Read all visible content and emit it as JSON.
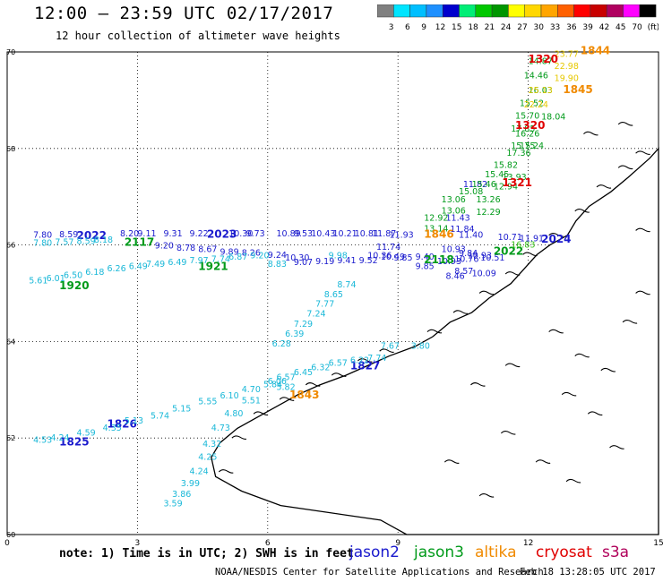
{
  "header": {
    "title": "12:00 — 23:59 UTC 02/17/2017",
    "subtitle": "12 hour collection of altimeter wave heights"
  },
  "colorbar": {
    "ticks": [
      "3",
      "6",
      "9",
      "12",
      "15",
      "18",
      "21",
      "24",
      "27",
      "30",
      "33",
      "36",
      "39",
      "42",
      "45",
      "70",
      "(ft)"
    ],
    "colors": [
      "#808080",
      "#00e5ff",
      "#00bfff",
      "#1e90ff",
      "#0000cd",
      "#00ee76",
      "#00c800",
      "#009600",
      "#ffff00",
      "#ffd700",
      "#ffa500",
      "#ff6000",
      "#ff0000",
      "#c80000",
      "#b00060",
      "#ff00ff",
      "#000000"
    ]
  },
  "footer": {
    "note": "note: 1) Time is in UTC; 2) SWH is in feet",
    "credit": "NOAA/NESDIS Center for Satellite Applications and Research",
    "timestamp": "Feb 18 13:28:05 UTC 2017"
  },
  "satellites": [
    {
      "name": "jason2",
      "color": "#1a1acd"
    },
    {
      "name": "jason3",
      "color": "#009a1a"
    },
    {
      "name": "altika",
      "color": "#f08a00"
    },
    {
      "name": "cryosat",
      "color": "#e00000"
    },
    {
      "name": "s3a",
      "color": "#b0005a"
    }
  ],
  "chart_data": {
    "type": "scatter",
    "xlim": [
      0,
      15
    ],
    "ylim": [
      60,
      70
    ],
    "xticks": [
      "0",
      "3",
      "6",
      "9",
      "12",
      "15"
    ],
    "yticks": [
      "60",
      "62",
      "64",
      "66",
      "68",
      "70"
    ],
    "grid": true,
    "series": [
      {
        "name": "jason2",
        "color": "#1a1acd",
        "labels": [
          {
            "lon": 1.6,
            "lat": 66.12,
            "text": "2022",
            "kind": "time"
          },
          {
            "lon": 4.6,
            "lat": 66.15,
            "text": "2023",
            "kind": "time"
          },
          {
            "lon": 12.3,
            "lat": 66.05,
            "text": "2024",
            "kind": "time"
          },
          {
            "lon": 1.2,
            "lat": 61.85,
            "text": "1825",
            "kind": "time"
          },
          {
            "lon": 2.3,
            "lat": 62.22,
            "text": "1826",
            "kind": "time"
          },
          {
            "lon": 7.9,
            "lat": 63.42,
            "text": "1827",
            "kind": "time"
          },
          {
            "lon": 0.6,
            "lat": 66.15,
            "text": "7.80"
          },
          {
            "lon": 1.2,
            "lat": 66.16,
            "text": "8.59"
          },
          {
            "lon": 2.6,
            "lat": 66.18,
            "text": "8.20"
          },
          {
            "lon": 3.0,
            "lat": 66.18,
            "text": "9.11"
          },
          {
            "lon": 3.6,
            "lat": 66.18,
            "text": "9.31"
          },
          {
            "lon": 4.2,
            "lat": 66.18,
            "text": "9.22"
          },
          {
            "lon": 5.1,
            "lat": 66.18,
            "text": "10.30"
          },
          {
            "lon": 5.5,
            "lat": 66.18,
            "text": "9.73"
          },
          {
            "lon": 6.2,
            "lat": 66.18,
            "text": "10.89"
          },
          {
            "lon": 6.6,
            "lat": 66.18,
            "text": "9.53"
          },
          {
            "lon": 7.0,
            "lat": 66.18,
            "text": "10.43"
          },
          {
            "lon": 7.5,
            "lat": 66.18,
            "text": "10.21"
          },
          {
            "lon": 8.0,
            "lat": 66.18,
            "text": "10.81"
          },
          {
            "lon": 8.4,
            "lat": 66.18,
            "text": "11.87"
          },
          {
            "lon": 8.8,
            "lat": 66.15,
            "text": "11.93"
          },
          {
            "lon": 11.3,
            "lat": 66.1,
            "text": "10.71"
          },
          {
            "lon": 11.8,
            "lat": 66.08,
            "text": "11.91"
          },
          {
            "lon": 3.4,
            "lat": 65.93,
            "text": "9.20"
          },
          {
            "lon": 3.9,
            "lat": 65.88,
            "text": "8.78"
          },
          {
            "lon": 4.4,
            "lat": 65.85,
            "text": "8.67"
          },
          {
            "lon": 4.9,
            "lat": 65.8,
            "text": "9.89"
          },
          {
            "lon": 5.4,
            "lat": 65.78,
            "text": "8.26"
          },
          {
            "lon": 6.0,
            "lat": 65.73,
            "text": "9.24"
          },
          {
            "lon": 6.4,
            "lat": 65.68,
            "text": "10.30"
          },
          {
            "lon": 6.6,
            "lat": 65.58,
            "text": "9.07"
          },
          {
            "lon": 7.1,
            "lat": 65.6,
            "text": "9.19"
          },
          {
            "lon": 7.6,
            "lat": 65.62,
            "text": "9.41"
          },
          {
            "lon": 8.1,
            "lat": 65.62,
            "text": "9.52"
          },
          {
            "lon": 8.3,
            "lat": 65.72,
            "text": "10.36"
          },
          {
            "lon": 8.6,
            "lat": 65.7,
            "text": "10.49"
          },
          {
            "lon": 8.9,
            "lat": 65.68,
            "text": "9.85"
          },
          {
            "lon": 9.4,
            "lat": 65.7,
            "text": "9.40"
          },
          {
            "lon": 8.5,
            "lat": 65.9,
            "text": "11.74"
          },
          {
            "lon": 9.4,
            "lat": 65.5,
            "text": "9.85"
          },
          {
            "lon": 9.9,
            "lat": 65.6,
            "text": "10.93"
          },
          {
            "lon": 10.3,
            "lat": 65.65,
            "text": "10.76"
          },
          {
            "lon": 10.6,
            "lat": 65.72,
            "text": "10.93"
          },
          {
            "lon": 10.9,
            "lat": 65.68,
            "text": "10.51"
          },
          {
            "lon": 10.4,
            "lat": 65.77,
            "text": "9.84"
          },
          {
            "lon": 10.3,
            "lat": 65.4,
            "text": "8.57"
          },
          {
            "lon": 10.1,
            "lat": 65.3,
            "text": "8.46"
          },
          {
            "lon": 10.7,
            "lat": 65.35,
            "text": "10.09"
          },
          {
            "lon": 10.0,
            "lat": 65.85,
            "text": "10.93"
          },
          {
            "lon": 10.2,
            "lat": 66.27,
            "text": "11.84"
          },
          {
            "lon": 10.1,
            "lat": 66.5,
            "text": "11.43"
          },
          {
            "lon": 10.5,
            "lat": 67.2,
            "text": "11.82"
          },
          {
            "lon": 10.4,
            "lat": 66.15,
            "text": "11.40"
          }
        ]
      },
      {
        "name": "jason3",
        "color": "#009a1a",
        "labels": [
          {
            "lon": 2.7,
            "lat": 65.98,
            "text": "2117",
            "kind": "time"
          },
          {
            "lon": 4.4,
            "lat": 65.48,
            "text": "1921",
            "kind": "time"
          },
          {
            "lon": 1.2,
            "lat": 65.08,
            "text": "1920",
            "kind": "time"
          },
          {
            "lon": 9.6,
            "lat": 65.62,
            "text": "2118",
            "kind": "time"
          },
          {
            "lon": 11.2,
            "lat": 65.8,
            "text": "2022",
            "kind": "time"
          },
          {
            "lon": 11.6,
            "lat": 65.95,
            "text": "16.83",
            "kind": "swh"
          },
          {
            "lon": 12.0,
            "lat": 69.75,
            "text": "14.87"
          },
          {
            "lon": 11.9,
            "lat": 69.45,
            "text": "14.46"
          },
          {
            "lon": 12.0,
            "lat": 69.15,
            "text": "16.03"
          },
          {
            "lon": 11.8,
            "lat": 68.88,
            "text": "15.52"
          },
          {
            "lon": 11.7,
            "lat": 68.62,
            "text": "15.70"
          },
          {
            "lon": 11.6,
            "lat": 68.35,
            "text": "17.85"
          },
          {
            "lon": 11.7,
            "lat": 68.25,
            "text": "16.26"
          },
          {
            "lon": 11.6,
            "lat": 68.0,
            "text": "15.75"
          },
          {
            "lon": 11.5,
            "lat": 67.85,
            "text": "17.36"
          },
          {
            "lon": 11.2,
            "lat": 67.6,
            "text": "15.82"
          },
          {
            "lon": 11.0,
            "lat": 67.4,
            "text": "15.45"
          },
          {
            "lon": 10.7,
            "lat": 67.2,
            "text": "15.46"
          },
          {
            "lon": 10.4,
            "lat": 67.05,
            "text": "15.08"
          },
          {
            "lon": 10.0,
            "lat": 66.88,
            "text": "13.06"
          },
          {
            "lon": 10.0,
            "lat": 66.65,
            "text": "13.06"
          },
          {
            "lon": 9.6,
            "lat": 66.5,
            "text": "12.92"
          },
          {
            "lon": 9.6,
            "lat": 66.28,
            "text": "13.14"
          },
          {
            "lon": 10.8,
            "lat": 66.88,
            "text": "13.26"
          },
          {
            "lon": 10.8,
            "lat": 66.62,
            "text": "12.29"
          },
          {
            "lon": 11.2,
            "lat": 67.15,
            "text": "12.94"
          },
          {
            "lon": 11.4,
            "lat": 67.35,
            "text": "13.93"
          },
          {
            "lon": 11.8,
            "lat": 68.0,
            "text": "15.24"
          },
          {
            "lon": 12.3,
            "lat": 68.6,
            "text": "18.04"
          }
        ]
      },
      {
        "name": "cyan",
        "color": "#1ab8d8",
        "labels": [
          {
            "lon": 0.6,
            "lat": 61.9,
            "text": "4.53"
          },
          {
            "lon": 1.0,
            "lat": 61.95,
            "text": "4.24"
          },
          {
            "lon": 1.6,
            "lat": 62.05,
            "text": "4.59"
          },
          {
            "lon": 2.2,
            "lat": 62.15,
            "text": "4.35"
          },
          {
            "lon": 2.7,
            "lat": 62.3,
            "text": "5.13"
          },
          {
            "lon": 3.3,
            "lat": 62.4,
            "text": "5.74"
          },
          {
            "lon": 3.8,
            "lat": 62.55,
            "text": "5.15"
          },
          {
            "lon": 4.4,
            "lat": 62.7,
            "text": "5.55"
          },
          {
            "lon": 4.9,
            "lat": 62.82,
            "text": "6.10"
          },
          {
            "lon": 5.4,
            "lat": 62.95,
            "text": "4.70"
          },
          {
            "lon": 5.9,
            "lat": 63.05,
            "text": "5.84"
          },
          {
            "lon": 6.2,
            "lat": 63.2,
            "text": "6.57"
          },
          {
            "lon": 6.6,
            "lat": 63.3,
            "text": "6.45"
          },
          {
            "lon": 7.0,
            "lat": 63.4,
            "text": "6.32"
          },
          {
            "lon": 7.4,
            "lat": 63.5,
            "text": "6.57"
          },
          {
            "lon": 7.9,
            "lat": 63.55,
            "text": "6.22"
          },
          {
            "lon": 8.3,
            "lat": 63.6,
            "text": "7.74"
          },
          {
            "lon": 8.6,
            "lat": 63.85,
            "text": "7.67"
          },
          {
            "lon": 6.1,
            "lat": 63.9,
            "text": "6.28"
          },
          {
            "lon": 6.4,
            "lat": 64.1,
            "text": "6.39"
          },
          {
            "lon": 6.6,
            "lat": 64.3,
            "text": "7.29"
          },
          {
            "lon": 6.9,
            "lat": 64.52,
            "text": "7.24"
          },
          {
            "lon": 7.1,
            "lat": 64.72,
            "text": "7.77"
          },
          {
            "lon": 7.3,
            "lat": 64.92,
            "text": "8.65"
          },
          {
            "lon": 7.6,
            "lat": 65.12,
            "text": "8.74"
          },
          {
            "lon": 6.2,
            "lat": 63.0,
            "text": "5.82"
          },
          {
            "lon": 6.0,
            "lat": 63.12,
            "text": "6.06"
          },
          {
            "lon": 5.4,
            "lat": 62.72,
            "text": "5.51"
          },
          {
            "lon": 5.0,
            "lat": 62.45,
            "text": "4.80"
          },
          {
            "lon": 4.7,
            "lat": 62.15,
            "text": "4.73"
          },
          {
            "lon": 4.5,
            "lat": 61.82,
            "text": "4.32"
          },
          {
            "lon": 4.4,
            "lat": 61.55,
            "text": "4.25"
          },
          {
            "lon": 4.2,
            "lat": 61.25,
            "text": "4.24"
          },
          {
            "lon": 4.0,
            "lat": 61.0,
            "text": "3.99"
          },
          {
            "lon": 3.8,
            "lat": 60.78,
            "text": "3.86"
          },
          {
            "lon": 3.6,
            "lat": 60.58,
            "text": "3.59"
          },
          {
            "lon": 0.5,
            "lat": 65.2,
            "text": "5.61"
          },
          {
            "lon": 0.9,
            "lat": 65.25,
            "text": "6.01"
          },
          {
            "lon": 1.3,
            "lat": 65.32,
            "text": "6.50"
          },
          {
            "lon": 1.8,
            "lat": 65.38,
            "text": "6.18"
          },
          {
            "lon": 2.3,
            "lat": 65.45,
            "text": "6.26"
          },
          {
            "lon": 2.8,
            "lat": 65.5,
            "text": "6.49"
          },
          {
            "lon": 3.2,
            "lat": 65.55,
            "text": "7.49"
          },
          {
            "lon": 3.7,
            "lat": 65.58,
            "text": "6.49"
          },
          {
            "lon": 4.2,
            "lat": 65.62,
            "text": "7.97"
          },
          {
            "lon": 4.7,
            "lat": 65.65,
            "text": "7.74"
          },
          {
            "lon": 5.1,
            "lat": 65.7,
            "text": "6.87"
          },
          {
            "lon": 5.6,
            "lat": 65.72,
            "text": "9.20"
          },
          {
            "lon": 6.0,
            "lat": 65.55,
            "text": "8.83"
          },
          {
            "lon": 7.4,
            "lat": 65.72,
            "text": "9.98"
          },
          {
            "lon": 0.6,
            "lat": 65.98,
            "text": "7.80"
          },
          {
            "lon": 1.1,
            "lat": 66.0,
            "text": "7.57"
          },
          {
            "lon": 1.6,
            "lat": 66.02,
            "text": "8.59"
          },
          {
            "lon": 2.0,
            "lat": 66.05,
            "text": "8.18"
          },
          {
            "lon": 9.3,
            "lat": 63.85,
            "text": "3.80"
          }
        ]
      },
      {
        "name": "altika",
        "color": "#f08a00",
        "labels": [
          {
            "lon": 6.5,
            "lat": 62.82,
            "text": "1843",
            "kind": "time"
          },
          {
            "lon": 13.2,
            "lat": 69.95,
            "text": "1844",
            "kind": "time"
          },
          {
            "lon": 12.8,
            "lat": 69.15,
            "text": "1845",
            "kind": "time"
          },
          {
            "lon": 9.6,
            "lat": 66.15,
            "text": "1846",
            "kind": "time"
          },
          {
            "lon": 12.6,
            "lat": 69.9,
            "text": "23.77",
            "kind": "swh"
          },
          {
            "lon": 12.6,
            "lat": 69.65,
            "text": "22.98",
            "kind": "swh"
          },
          {
            "lon": 12.0,
            "lat": 69.15,
            "text": "25.13",
            "kind": "swh"
          },
          {
            "lon": 11.9,
            "lat": 68.85,
            "text": "22.24",
            "kind": "swh"
          },
          {
            "lon": 12.6,
            "lat": 69.4,
            "text": "19.90",
            "kind": "swh"
          }
        ]
      },
      {
        "name": "cryosat",
        "color": "#e00000",
        "labels": [
          {
            "lon": 12.0,
            "lat": 69.78,
            "text": "1320",
            "kind": "time"
          },
          {
            "lon": 11.7,
            "lat": 68.4,
            "text": "1320",
            "kind": "time"
          },
          {
            "lon": 11.4,
            "lat": 67.22,
            "text": "1321",
            "kind": "time"
          }
        ]
      }
    ]
  }
}
